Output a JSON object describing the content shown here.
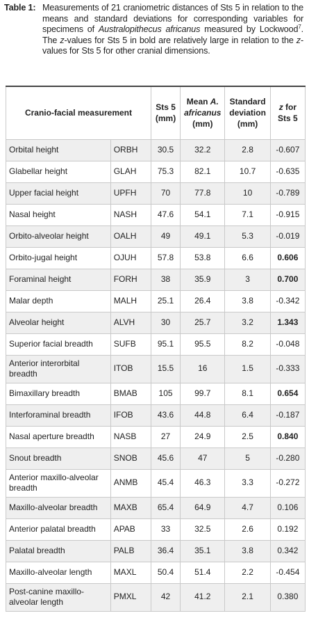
{
  "caption": {
    "label": "Table 1:",
    "text_before_species": "Measurements of 21 craniometric distances of Sts 5 in relation to the means and standard deviations for corresponding variables for specimens of ",
    "species": "Australopithecus africanus",
    "text_measured_by": " measured by Lockwood",
    "ref": "7",
    "text_after_ref": ". The ",
    "z_italic": "z",
    "text_mid": "-values for Sts 5 in bold are relatively large in relation to the ",
    "z_italic2": "z",
    "text_end": "-values for Sts 5 for other cranial dimensions."
  },
  "table": {
    "headers": {
      "measurement": "Cranio-facial measurement",
      "sts5": "Sts 5 (mm)",
      "mean_prefix": "Mean ",
      "mean_species": "A. africanus",
      "mean_suffix": " (mm)",
      "sd": "Standard deviation (mm)",
      "z_letter": "z",
      "z_suffix": " for Sts 5"
    },
    "rows": [
      {
        "name": "Orbital height",
        "abbr": "ORBH",
        "sts5": "30.5",
        "mean": "32.2",
        "sd": "2.8",
        "z": "-0.607",
        "bold": false,
        "tall": false
      },
      {
        "name": "Glabellar height",
        "abbr": "GLAH",
        "sts5": "75.3",
        "mean": "82.1",
        "sd": "10.7",
        "z": "-0.635",
        "bold": false,
        "tall": false
      },
      {
        "name": "Upper facial height",
        "abbr": "UPFH",
        "sts5": "70",
        "mean": "77.8",
        "sd": "10",
        "z": "-0.789",
        "bold": false,
        "tall": false
      },
      {
        "name": "Nasal height",
        "abbr": "NASH",
        "sts5": "47.6",
        "mean": "54.1",
        "sd": "7.1",
        "z": "-0.915",
        "bold": false,
        "tall": false
      },
      {
        "name": "Orbito-alveolar height",
        "abbr": "OALH",
        "sts5": "49",
        "mean": "49.1",
        "sd": "5.3",
        "z": "-0.019",
        "bold": false,
        "tall": false
      },
      {
        "name": "Orbito-jugal height",
        "abbr": "OJUH",
        "sts5": "57.8",
        "mean": "53.8",
        "sd": "6.6",
        "z": "0.606",
        "bold": true,
        "tall": false
      },
      {
        "name": "Foraminal height",
        "abbr": "FORH",
        "sts5": "38",
        "mean": "35.9",
        "sd": "3",
        "z": "0.700",
        "bold": true,
        "tall": false
      },
      {
        "name": "Malar depth",
        "abbr": "MALH",
        "sts5": "25.1",
        "mean": "26.4",
        "sd": "3.8",
        "z": "-0.342",
        "bold": false,
        "tall": false
      },
      {
        "name": "Alveolar height",
        "abbr": "ALVH",
        "sts5": "30",
        "mean": "25.7",
        "sd": "3.2",
        "z": "1.343",
        "bold": true,
        "tall": false
      },
      {
        "name": "Superior facial breadth",
        "abbr": "SUFB",
        "sts5": "95.1",
        "mean": "95.5",
        "sd": "8.2",
        "z": "-0.048",
        "bold": false,
        "tall": false
      },
      {
        "name": "Anterior interorbital breadth",
        "abbr": "ITOB",
        "sts5": "15.5",
        "mean": "16",
        "sd": "1.5",
        "z": "-0.333",
        "bold": false,
        "tall": true
      },
      {
        "name": "Bimaxillary breadth",
        "abbr": "BMAB",
        "sts5": "105",
        "mean": "99.7",
        "sd": "8.1",
        "z": "0.654",
        "bold": true,
        "tall": false
      },
      {
        "name": "Interforaminal breadth",
        "abbr": "IFOB",
        "sts5": "43.6",
        "mean": "44.8",
        "sd": "6.4",
        "z": "-0.187",
        "bold": false,
        "tall": false
      },
      {
        "name": "Nasal aperture breadth",
        "abbr": "NASB",
        "sts5": "27",
        "mean": "24.9",
        "sd": "2.5",
        "z": "0.840",
        "bold": true,
        "tall": false
      },
      {
        "name": "Snout breadth",
        "abbr": "SNOB",
        "sts5": "45.6",
        "mean": "47",
        "sd": "5",
        "z": "-0.280",
        "bold": false,
        "tall": false
      },
      {
        "name": "Anterior maxillo-alveolar breadth",
        "abbr": "ANMB",
        "sts5": "45.4",
        "mean": "46.3",
        "sd": "3.3",
        "z": "-0.272",
        "bold": false,
        "tall": true
      },
      {
        "name": "Maxillo-alveolar breadth",
        "abbr": "MAXB",
        "sts5": "65.4",
        "mean": "64.9",
        "sd": "4.7",
        "z": "0.106",
        "bold": false,
        "tall": false
      },
      {
        "name": "Anterior palatal breadth",
        "abbr": "APAB",
        "sts5": "33",
        "mean": "32.5",
        "sd": "2.6",
        "z": "0.192",
        "bold": false,
        "tall": false
      },
      {
        "name": "Palatal breadth",
        "abbr": "PALB",
        "sts5": "36.4",
        "mean": "35.1",
        "sd": "3.8",
        "z": "0.342",
        "bold": false,
        "tall": false
      },
      {
        "name": "Maxillo-alveolar length",
        "abbr": "MAXL",
        "sts5": "50.4",
        "mean": "51.4",
        "sd": "2.2",
        "z": "-0.454",
        "bold": false,
        "tall": false
      },
      {
        "name": "Post-canine maxillo-alveolar length",
        "abbr": "PMXL",
        "sts5": "42",
        "mean": "41.2",
        "sd": "2.1",
        "z": "0.380",
        "bold": false,
        "tall": true
      }
    ]
  }
}
